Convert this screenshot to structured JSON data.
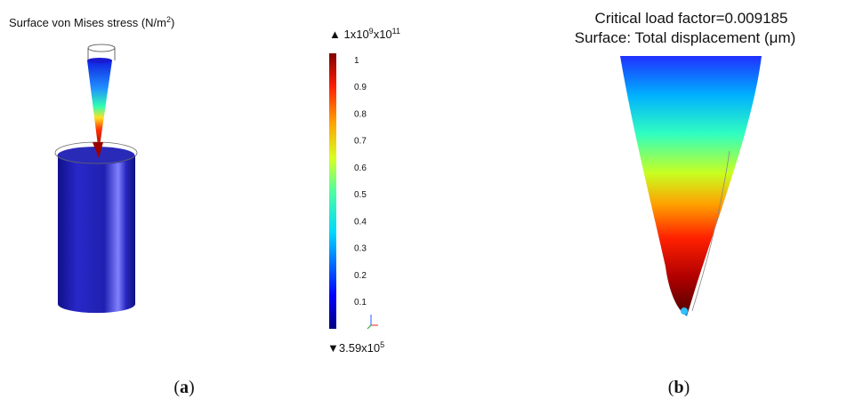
{
  "panel_a": {
    "title": {
      "text": "Surface von Mises stress (N/m",
      "sup": "2",
      "end": ")"
    },
    "colorbar": {
      "max_label": {
        "prefix": "▲ 1x10",
        "sup1": "9",
        "mid": "x10",
        "sup2": "11"
      },
      "ticks": [
        "1",
        "0.9",
        "0.8",
        "0.7",
        "0.6",
        "0.5",
        "0.4",
        "0.3",
        "0.2",
        "0.1"
      ],
      "min_label": {
        "prefix": "▼3.59x10",
        "sup": "5"
      }
    },
    "caption": {
      "open": "(",
      "letter": "a",
      "close": ")"
    }
  },
  "panel_b": {
    "title_line1": "Critical load factor=0.009185",
    "title_line2": "Surface: Total displacement (μm)",
    "caption": {
      "open": "(",
      "letter": "b",
      "close": ")"
    }
  }
}
